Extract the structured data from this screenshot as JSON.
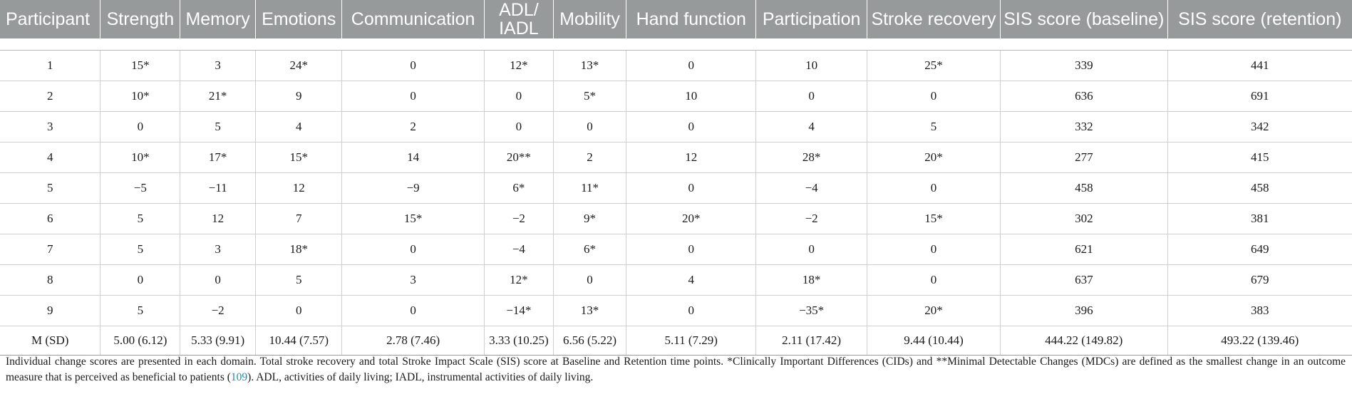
{
  "table": {
    "headers": [
      "Participant",
      "Strength",
      "Memory",
      "Emotions",
      "Communication",
      "ADL/ IADL",
      "Mobility",
      "Hand function",
      "Participation",
      "Stroke recovery",
      "SIS score (baseline)",
      "SIS score (retention)"
    ],
    "rows": [
      [
        "1",
        "15*",
        "3",
        "24*",
        "0",
        "12*",
        "13*",
        "0",
        "10",
        "25*",
        "339",
        "441"
      ],
      [
        "2",
        "10*",
        "21*",
        "9",
        "0",
        "0",
        "5*",
        "10",
        "0",
        "0",
        "636",
        "691"
      ],
      [
        "3",
        "0",
        "5",
        "4",
        "2",
        "0",
        "0",
        "0",
        "4",
        "5",
        "332",
        "342"
      ],
      [
        "4",
        "10*",
        "17*",
        "15*",
        "14",
        "20**",
        "2",
        "12",
        "28*",
        "20*",
        "277",
        "415"
      ],
      [
        "5",
        "−5",
        "−11",
        "12",
        "−9",
        "6*",
        "11*",
        "0",
        "−4",
        "0",
        "458",
        "458"
      ],
      [
        "6",
        "5",
        "12",
        "7",
        "15*",
        "−2",
        "9*",
        "20*",
        "−2",
        "15*",
        "302",
        "381"
      ],
      [
        "7",
        "5",
        "3",
        "18*",
        "0",
        "−4",
        "6*",
        "0",
        "0",
        "0",
        "621",
        "649"
      ],
      [
        "8",
        "0",
        "0",
        "5",
        "3",
        "12*",
        "0",
        "4",
        "18*",
        "0",
        "637",
        "679"
      ],
      [
        "9",
        "5",
        "−2",
        "0",
        "0",
        "−14*",
        "13*",
        "0",
        "−35*",
        "20*",
        "396",
        "383"
      ]
    ],
    "summary": [
      "M (SD)",
      "5.00 (6.12)",
      "5.33 (9.91)",
      "10.44 (7.57)",
      "2.78 (7.46)",
      "3.33 (10.25)",
      "6.56 (5.22)",
      "5.11 (7.29)",
      "2.11 (17.42)",
      "9.44 (10.44)",
      "444.22 (149.82)",
      "493.22 (139.46)"
    ]
  },
  "footnote": {
    "before_ref": "Individual change scores are presented in each domain. Total stroke recovery and total Stroke Impact Scale (SIS) score at Baseline and Retention time points. *Clinically Important Differences (CIDs) and **Minimal Detectable Changes (MDCs) are defined as the smallest change in an outcome measure that is perceived as beneficial to patients (",
    "ref": "109",
    "after_ref": "). ADL, activities of daily living; IADL, instrumental activities of daily living."
  }
}
